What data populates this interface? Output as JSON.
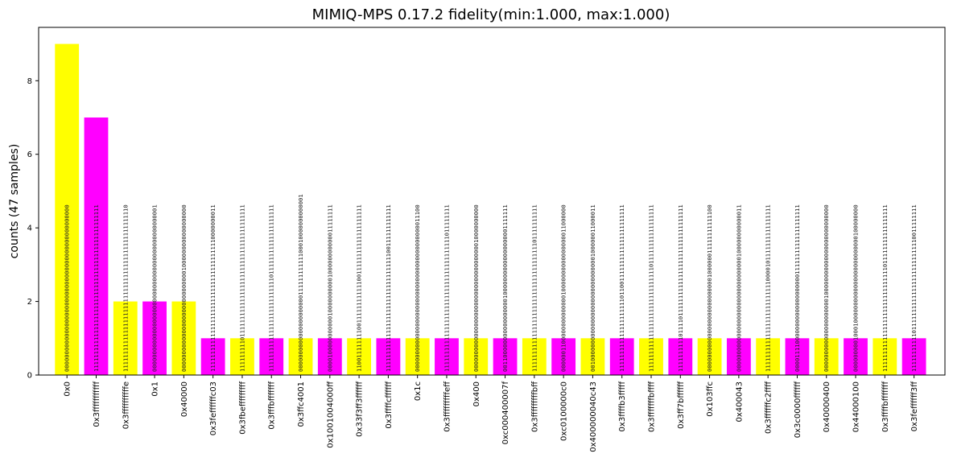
{
  "chart_data": {
    "type": "bar",
    "title": "MIMIQ-MPS 0.17.2 fidelity(min:1.000, max:1.000)",
    "ylabel": "counts (47 samples)",
    "xlabel": "",
    "ylim": [
      0,
      9.45
    ],
    "yticks": [
      0,
      2,
      4,
      6,
      8
    ],
    "grid": false,
    "colors": [
      "#ffff00",
      "#ff00ff"
    ],
    "categories": [
      "0x0",
      "0x3fffffffffff",
      "0x3ffffffffffe",
      "0x1",
      "0x40000",
      "0x3feffffffc03",
      "0x3fbefffffffff",
      "0x3fffbfffffff",
      "0x3ffc4001",
      "0x1001004000ff",
      "0x33f3ff3ffffff",
      "0x3ffffcffffff",
      "0x1c",
      "0x3fffffffffeff",
      "0x400",
      "0xc000400007f",
      "0x3fffffffffbff",
      "0xc0100000c0",
      "0x400000040c43",
      "0x3ffffb3fffff",
      "0x3fffffffbffff",
      "0x3ff7bffffff",
      "0x103ffc",
      "0x400043",
      "0x3ffffffc2ffff",
      "0x3c0000ffffff",
      "0x40000400",
      "0x44000100",
      "0x3ffffbfffffff",
      "0x3feffffff3ff"
    ],
    "values": [
      9,
      7,
      2,
      2,
      2,
      1,
      1,
      1,
      1,
      1,
      1,
      1,
      1,
      1,
      1,
      1,
      1,
      1,
      1,
      1,
      1,
      1,
      1,
      1,
      1,
      1,
      1,
      1,
      1,
      1
    ],
    "bitstrings": [
      "000000000000000000000000000000000000000000000000",
      "111111111111111111111111111111111111111111111111",
      "111111111111111111111111111111111111111111111110",
      "000000000000000000000000000000000000000000000001",
      "000000000000000000000000000001000000000000000000",
      "111111111111111111111111111111111111110000000011",
      "111111111011111111111111111111111111111111111111",
      "111111111111111111111111111011111111111111111111",
      "000000000000000000000011111111111100010000000000001",
      "000010000000000010000000000100000000000011111111",
      "110011111111001111111111110011111111111111111111",
      "111111111111111111111111111111111100111111111111",
      "000000000000000000000000000000000000000000011100",
      "111111111111111111111111111111111111111011111111",
      "000000000000000000000000000000000000010000000000",
      "001100000000000000000100000000000000000001111111",
      "111111111111111111111111111111111111101111111111",
      "000000110000000000000010000000000000000011000000",
      "001000000000000000000000000000000100000011000011",
      "111111111111111111111011001111111111111111111111",
      "111111111111111111111111111111011111111111111111",
      "111111111101111011111111111111111111111111111111",
      "000000000000000000000000000100000011111111111100",
      "000000000000000000000000000000000100000000000011",
      "111111111111111111111111110000101111111111111111",
      "000011110000000000000000000011111111111111111111",
      "000000000000000000000100000000000000000000000000",
      "000000000100010000000000000000000000000100000000",
      "111111111111111111111111111111011111111111111111",
      "111111111110111111111111111111111111110011111111"
    ]
  }
}
